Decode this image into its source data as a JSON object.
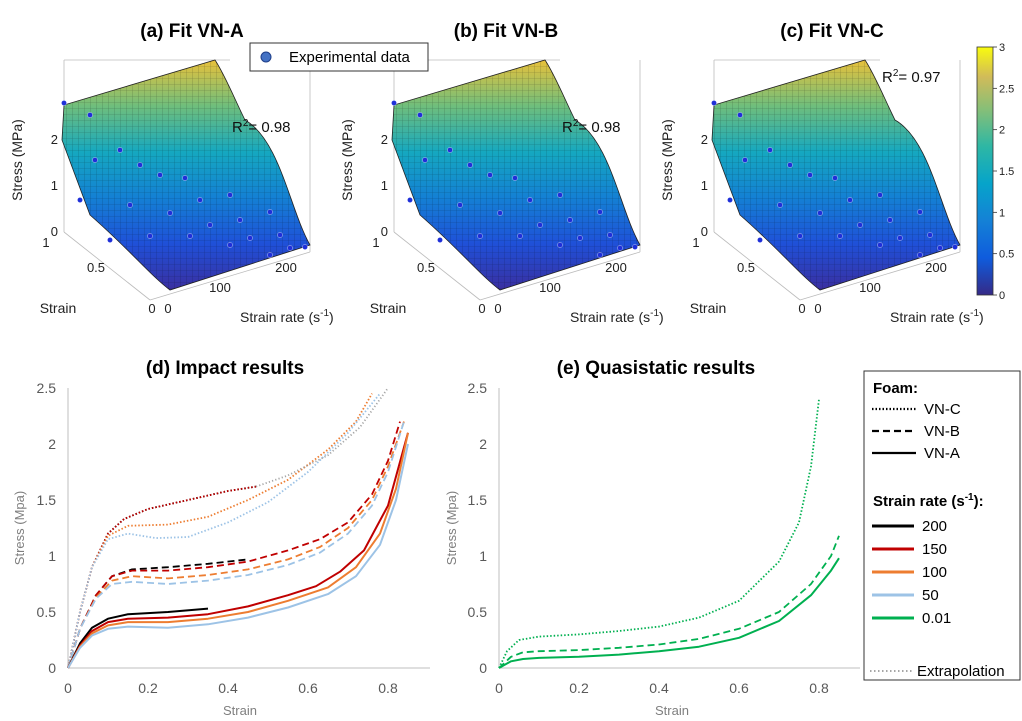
{
  "colors": {
    "black": "#000000",
    "red": "#c00000",
    "orange": "#ed7d31",
    "lightblue": "#9dc3e6",
    "green": "#00b050",
    "marker": "#1f2fd8",
    "extrapolation": "#a6a6a6"
  },
  "top_panels": [
    {
      "title": "(a) Fit VN-A",
      "r2_prefix": "R",
      "r2_sup": "2",
      "r2_value": "= 0.98"
    },
    {
      "title": "(b) Fit VN-B",
      "r2_prefix": "R",
      "r2_sup": "2",
      "r2_value": "= 0.98"
    },
    {
      "title": "(c) Fit VN-C",
      "r2_prefix": "R",
      "r2_sup": "2",
      "r2_value": "= 0.97"
    }
  ],
  "surface_axes": {
    "z_label": "Stress (MPa)",
    "z_ticks": [
      "0",
      "1",
      "2"
    ],
    "strain_label": "Strain",
    "strain_ticks": [
      "0",
      "0.5",
      "1"
    ],
    "rate_label_main": "Strain rate (s",
    "rate_label_sup": "-1",
    "rate_label_end": ")",
    "rate_ticks": [
      "0",
      "100",
      "200"
    ]
  },
  "surface_legend": {
    "label": "Experimental data"
  },
  "colorbar": {
    "ticks": [
      "3",
      "2.5",
      "2",
      "1.5",
      "1",
      "0.5",
      "0"
    ],
    "range": [
      0,
      3
    ],
    "colormap": "parula"
  },
  "panel_d": {
    "title": "(d) Impact results",
    "xlabel": "Strain",
    "ylabel": "Stress (Mpa)",
    "x_ticks": [
      "0",
      "0.2",
      "0.4",
      "0.6",
      "0.8"
    ],
    "y_ticks": [
      "0",
      "0.5",
      "1",
      "1.5",
      "2",
      "2.5"
    ]
  },
  "panel_e": {
    "title": "(e) Quasistatic results",
    "xlabel": "Strain",
    "ylabel": "Stress (Mpa)",
    "x_ticks": [
      "0",
      "0.2",
      "0.4",
      "0.6",
      "0.8"
    ],
    "y_ticks": [
      "0",
      "0.5",
      "1",
      "1.5",
      "2",
      "2.5"
    ]
  },
  "legend": {
    "foam_title": "Foam:",
    "foam_items": [
      {
        "label": "VN-C",
        "style": "dotted"
      },
      {
        "label": "VN-B",
        "style": "dashed"
      },
      {
        "label": "VN-A",
        "style": "solid"
      }
    ],
    "rate_title_main": "Strain rate (s",
    "rate_title_sup": "-1",
    "rate_title_end": "):",
    "rate_items": [
      {
        "label": "200",
        "color": "#000000"
      },
      {
        "label": "150",
        "color": "#c00000"
      },
      {
        "label": "100",
        "color": "#ed7d31"
      },
      {
        "label": "50",
        "color": "#9dc3e6"
      },
      {
        "label": "0.01",
        "color": "#00b050"
      }
    ],
    "extrapolation": "Extrapolation"
  },
  "chart_data": [
    {
      "type": "surface",
      "title": "(a) Fit VN-A",
      "xlabel": "Strain rate (s-1)",
      "ylabel": "Strain",
      "zlabel": "Stress (MPa)",
      "xlim": [
        0,
        200
      ],
      "ylim": [
        0,
        1
      ],
      "zlim": [
        0,
        3
      ],
      "r2": 0.98
    },
    {
      "type": "surface",
      "title": "(b) Fit VN-B",
      "xlabel": "Strain rate (s-1)",
      "ylabel": "Strain",
      "zlabel": "Stress (MPa)",
      "xlim": [
        0,
        200
      ],
      "ylim": [
        0,
        1
      ],
      "zlim": [
        0,
        3
      ],
      "r2": 0.98
    },
    {
      "type": "surface",
      "title": "(c) Fit VN-C",
      "xlabel": "Strain rate (s-1)",
      "ylabel": "Strain",
      "zlabel": "Stress (MPa)",
      "xlim": [
        0,
        200
      ],
      "ylim": [
        0,
        1
      ],
      "zlim": [
        0,
        3
      ],
      "r2": 0.97
    },
    {
      "type": "line",
      "title": "(d) Impact results",
      "xlabel": "Strain",
      "ylabel": "Stress (Mpa)",
      "xlim": [
        0,
        0.9
      ],
      "ylim": [
        0,
        2.5
      ],
      "series": [
        {
          "foam": "VN-C",
          "rate": "200",
          "style": "dotted",
          "color": "#000000",
          "points": [
            [
              0,
              0
            ],
            [
              0.03,
              0.5
            ],
            [
              0.06,
              0.9
            ],
            [
              0.1,
              1.2
            ],
            [
              0.14,
              1.33
            ],
            [
              0.2,
              1.42
            ],
            [
              0.3,
              1.5
            ],
            [
              0.4,
              1.58
            ],
            [
              0.47,
              1.62
            ]
          ]
        },
        {
          "foam": "VN-C",
          "rate": "150",
          "style": "dotted",
          "color": "#c00000",
          "points": [
            [
              0,
              0
            ],
            [
              0.03,
              0.5
            ],
            [
              0.06,
              0.9
            ],
            [
              0.1,
              1.2
            ],
            [
              0.14,
              1.33
            ],
            [
              0.2,
              1.42
            ],
            [
              0.3,
              1.5
            ],
            [
              0.4,
              1.58
            ],
            [
              0.47,
              1.62
            ]
          ]
        },
        {
          "foam": "VN-C",
          "rate": "100",
          "style": "dotted",
          "color": "#ed7d31",
          "points": [
            [
              0,
              0
            ],
            [
              0.03,
              0.5
            ],
            [
              0.06,
              0.9
            ],
            [
              0.1,
              1.18
            ],
            [
              0.15,
              1.27
            ],
            [
              0.25,
              1.28
            ],
            [
              0.35,
              1.35
            ],
            [
              0.45,
              1.5
            ],
            [
              0.55,
              1.68
            ],
            [
              0.65,
              1.95
            ],
            [
              0.72,
              2.2
            ],
            [
              0.76,
              2.45
            ]
          ]
        },
        {
          "foam": "VN-C",
          "rate": "50",
          "style": "dotted",
          "color": "#9dc3e6",
          "points": [
            [
              0,
              0
            ],
            [
              0.03,
              0.5
            ],
            [
              0.06,
              0.9
            ],
            [
              0.1,
              1.15
            ],
            [
              0.15,
              1.2
            ],
            [
              0.22,
              1.16
            ],
            [
              0.3,
              1.17
            ],
            [
              0.4,
              1.3
            ],
            [
              0.5,
              1.48
            ],
            [
              0.6,
              1.75
            ],
            [
              0.7,
              2.1
            ],
            [
              0.78,
              2.45
            ]
          ]
        },
        {
          "foam": "VN-C",
          "rate": "200",
          "style": "extrap",
          "color": "#a6a6a6",
          "points": [
            [
              0.47,
              1.62
            ],
            [
              0.55,
              1.72
            ],
            [
              0.65,
              1.9
            ],
            [
              0.73,
              2.15
            ],
            [
              0.8,
              2.5
            ]
          ]
        },
        {
          "foam": "VN-B",
          "rate": "200",
          "style": "dashed",
          "color": "#000000",
          "points": [
            [
              0,
              0
            ],
            [
              0.03,
              0.35
            ],
            [
              0.07,
              0.65
            ],
            [
              0.11,
              0.82
            ],
            [
              0.16,
              0.88
            ],
            [
              0.25,
              0.9
            ],
            [
              0.35,
              0.93
            ],
            [
              0.45,
              0.97
            ]
          ]
        },
        {
          "foam": "VN-B",
          "rate": "150",
          "style": "dashed",
          "color": "#c00000",
          "points": [
            [
              0,
              0
            ],
            [
              0.03,
              0.35
            ],
            [
              0.07,
              0.65
            ],
            [
              0.11,
              0.82
            ],
            [
              0.16,
              0.87
            ],
            [
              0.25,
              0.87
            ],
            [
              0.35,
              0.9
            ],
            [
              0.45,
              0.95
            ],
            [
              0.55,
              1.05
            ],
            [
              0.63,
              1.15
            ],
            [
              0.7,
              1.3
            ],
            [
              0.76,
              1.55
            ],
            [
              0.8,
              1.85
            ],
            [
              0.83,
              2.2
            ]
          ]
        },
        {
          "foam": "VN-B",
          "rate": "100",
          "style": "dashed",
          "color": "#ed7d31",
          "points": [
            [
              0,
              0
            ],
            [
              0.03,
              0.35
            ],
            [
              0.07,
              0.63
            ],
            [
              0.11,
              0.78
            ],
            [
              0.16,
              0.82
            ],
            [
              0.25,
              0.8
            ],
            [
              0.35,
              0.83
            ],
            [
              0.45,
              0.88
            ],
            [
              0.55,
              0.97
            ],
            [
              0.63,
              1.08
            ],
            [
              0.7,
              1.25
            ],
            [
              0.76,
              1.5
            ],
            [
              0.8,
              1.8
            ],
            [
              0.84,
              2.2
            ]
          ]
        },
        {
          "foam": "VN-B",
          "rate": "50",
          "style": "dashed",
          "color": "#9dc3e6",
          "points": [
            [
              0,
              0
            ],
            [
              0.03,
              0.35
            ],
            [
              0.07,
              0.62
            ],
            [
              0.11,
              0.75
            ],
            [
              0.16,
              0.77
            ],
            [
              0.25,
              0.75
            ],
            [
              0.35,
              0.78
            ],
            [
              0.45,
              0.83
            ],
            [
              0.55,
              0.92
            ],
            [
              0.63,
              1.03
            ],
            [
              0.7,
              1.2
            ],
            [
              0.76,
              1.45
            ],
            [
              0.8,
              1.75
            ],
            [
              0.84,
              2.2
            ]
          ]
        },
        {
          "foam": "VN-A",
          "rate": "200",
          "style": "solid",
          "color": "#000000",
          "points": [
            [
              0,
              0
            ],
            [
              0.03,
              0.22
            ],
            [
              0.06,
              0.36
            ],
            [
              0.1,
              0.44
            ],
            [
              0.15,
              0.48
            ],
            [
              0.25,
              0.5
            ],
            [
              0.35,
              0.53
            ]
          ]
        },
        {
          "foam": "VN-A",
          "rate": "150",
          "style": "solid",
          "color": "#c00000",
          "points": [
            [
              0,
              0
            ],
            [
              0.03,
              0.2
            ],
            [
              0.06,
              0.33
            ],
            [
              0.1,
              0.41
            ],
            [
              0.15,
              0.44
            ],
            [
              0.25,
              0.45
            ],
            [
              0.35,
              0.48
            ],
            [
              0.45,
              0.55
            ],
            [
              0.55,
              0.65
            ],
            [
              0.62,
              0.73
            ],
            [
              0.68,
              0.86
            ],
            [
              0.74,
              1.05
            ],
            [
              0.8,
              1.45
            ],
            [
              0.85,
              2.1
            ]
          ]
        },
        {
          "foam": "VN-A",
          "rate": "100",
          "style": "solid",
          "color": "#ed7d31",
          "points": [
            [
              0,
              0
            ],
            [
              0.03,
              0.19
            ],
            [
              0.06,
              0.31
            ],
            [
              0.1,
              0.38
            ],
            [
              0.15,
              0.41
            ],
            [
              0.25,
              0.41
            ],
            [
              0.35,
              0.44
            ],
            [
              0.45,
              0.5
            ],
            [
              0.55,
              0.6
            ],
            [
              0.65,
              0.72
            ],
            [
              0.72,
              0.9
            ],
            [
              0.78,
              1.2
            ],
            [
              0.82,
              1.6
            ],
            [
              0.85,
              2.1
            ]
          ]
        },
        {
          "foam": "VN-A",
          "rate": "50",
          "style": "solid",
          "color": "#9dc3e6",
          "points": [
            [
              0,
              0
            ],
            [
              0.03,
              0.18
            ],
            [
              0.06,
              0.29
            ],
            [
              0.1,
              0.35
            ],
            [
              0.15,
              0.37
            ],
            [
              0.25,
              0.36
            ],
            [
              0.35,
              0.39
            ],
            [
              0.45,
              0.45
            ],
            [
              0.55,
              0.54
            ],
            [
              0.65,
              0.66
            ],
            [
              0.72,
              0.82
            ],
            [
              0.78,
              1.1
            ],
            [
              0.82,
              1.5
            ],
            [
              0.85,
              2.0
            ]
          ]
        }
      ]
    },
    {
      "type": "line",
      "title": "(e) Quasistatic results",
      "xlabel": "Strain",
      "ylabel": "Stress (Mpa)",
      "xlim": [
        0,
        0.9
      ],
      "ylim": [
        0,
        2.5
      ],
      "series": [
        {
          "foam": "VN-C",
          "rate": "0.01",
          "style": "dotted",
          "color": "#00b050",
          "points": [
            [
              0,
              0
            ],
            [
              0.02,
              0.15
            ],
            [
              0.05,
              0.25
            ],
            [
              0.1,
              0.28
            ],
            [
              0.2,
              0.3
            ],
            [
              0.3,
              0.33
            ],
            [
              0.4,
              0.37
            ],
            [
              0.5,
              0.45
            ],
            [
              0.6,
              0.6
            ],
            [
              0.7,
              0.95
            ],
            [
              0.75,
              1.3
            ],
            [
              0.78,
              1.8
            ],
            [
              0.8,
              2.4
            ]
          ]
        },
        {
          "foam": "VN-B",
          "rate": "0.01",
          "style": "dashed",
          "color": "#00b050",
          "points": [
            [
              0,
              0
            ],
            [
              0.03,
              0.1
            ],
            [
              0.06,
              0.14
            ],
            [
              0.1,
              0.15
            ],
            [
              0.2,
              0.16
            ],
            [
              0.3,
              0.18
            ],
            [
              0.4,
              0.21
            ],
            [
              0.5,
              0.26
            ],
            [
              0.6,
              0.35
            ],
            [
              0.7,
              0.5
            ],
            [
              0.78,
              0.75
            ],
            [
              0.83,
              1.0
            ],
            [
              0.85,
              1.18
            ]
          ]
        },
        {
          "foam": "VN-A",
          "rate": "0.01",
          "style": "solid",
          "color": "#00b050",
          "points": [
            [
              0,
              0
            ],
            [
              0.03,
              0.06
            ],
            [
              0.06,
              0.08
            ],
            [
              0.1,
              0.09
            ],
            [
              0.2,
              0.1
            ],
            [
              0.3,
              0.12
            ],
            [
              0.4,
              0.15
            ],
            [
              0.5,
              0.19
            ],
            [
              0.6,
              0.27
            ],
            [
              0.7,
              0.42
            ],
            [
              0.78,
              0.65
            ],
            [
              0.83,
              0.87
            ],
            [
              0.85,
              0.98
            ]
          ]
        }
      ]
    }
  ]
}
